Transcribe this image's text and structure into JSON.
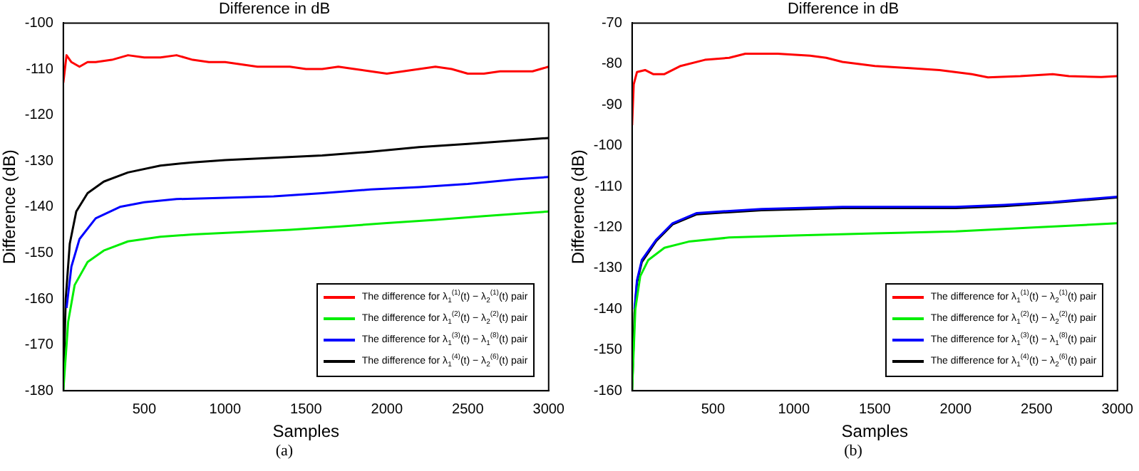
{
  "chart_data": [
    {
      "type": "line",
      "title": "Difference in dB",
      "xlabel": "Samples",
      "ylabel": "Difference (dB)",
      "xlim": [
        0,
        3000
      ],
      "xticks": [
        500,
        1000,
        1500,
        2000,
        2500,
        3000
      ],
      "ylim": [
        -180,
        -100
      ],
      "yticks": [
        -180,
        -170,
        -160,
        -150,
        -140,
        -130,
        -120,
        -110,
        -100
      ],
      "grid": false,
      "legend": "bottom right",
      "marker": "none",
      "line_style": "solid",
      "annotations": [
        "(a)"
      ],
      "series": [
        {
          "name": "The difference for λ$_{1}$$^{(1)}$(t) − λ$_{2}$$^{(1)}$(t) pair",
          "color": "#ff0000",
          "x": [
            0,
            20,
            50,
            100,
            150,
            200,
            300,
            400,
            500,
            600,
            700,
            800,
            900,
            1000,
            1100,
            1200,
            1300,
            1400,
            1500,
            1600,
            1700,
            1800,
            1900,
            2000,
            2100,
            2200,
            2300,
            2400,
            2500,
            2600,
            2700,
            2800,
            2900,
            3000
          ],
          "values": [
            -113,
            -107,
            -108.5,
            -109.5,
            -108.5,
            -108.5,
            -108,
            -107,
            -107.5,
            -107.5,
            -107,
            -108,
            -108.5,
            -108.5,
            -109,
            -109.5,
            -109.5,
            -109.5,
            -110,
            -110,
            -109.5,
            -110,
            -110.5,
            -111,
            -110.5,
            -110,
            -109.5,
            -110,
            -111,
            -111,
            -110.5,
            -110.5,
            -110.5,
            -109.5
          ]
        },
        {
          "name": "The difference for λ$_{1}$$^{(2)}$(t) − λ$_{2}$$^{(2)}$(t) pair",
          "color": "#00ee00",
          "x": [
            0,
            30,
            70,
            150,
            250,
            400,
            600,
            800,
            1100,
            1400,
            1700,
            2000,
            2300,
            2600,
            2800,
            3000
          ],
          "values": [
            -180,
            -165,
            -157,
            -152,
            -149.5,
            -147.5,
            -146.5,
            -146,
            -145.5,
            -145,
            -144.3,
            -143.5,
            -142.8,
            -142,
            -141.5,
            -141
          ]
        },
        {
          "name": "The difference for λ$_{1}$$^{(3)}$(t) − λ$_{1}$$^{(8)}$(t) pair",
          "color": "#0000ff",
          "x": [
            20,
            50,
            100,
            200,
            350,
            500,
            700,
            1000,
            1300,
            1600,
            1900,
            2200,
            2500,
            2800,
            3000
          ],
          "values": [
            -162,
            -153,
            -147,
            -142.5,
            -140,
            -139,
            -138.3,
            -138,
            -137.7,
            -137,
            -136.2,
            -135.7,
            -135,
            -134,
            -133.5
          ]
        },
        {
          "name": "The difference for λ$_{1}$$^{(4)}$(t) − λ$_{2}$$^{(6)}$(t) pair",
          "color": "#000000",
          "x": [
            0,
            15,
            40,
            80,
            150,
            250,
            400,
            600,
            800,
            1000,
            1300,
            1600,
            1900,
            2200,
            2500,
            2800,
            3000
          ],
          "values": [
            -180,
            -160,
            -148,
            -141,
            -137,
            -134.5,
            -132.5,
            -131,
            -130.3,
            -129.8,
            -129.3,
            -128.8,
            -128,
            -127,
            -126.3,
            -125.5,
            -125
          ]
        }
      ]
    },
    {
      "type": "line",
      "title": "Difference in dB",
      "xlabel": "Samples",
      "ylabel": "Difference (dB)",
      "xlim": [
        0,
        3000
      ],
      "xticks": [
        500,
        1000,
        1500,
        2000,
        2500,
        3000
      ],
      "ylim": [
        -160,
        -70
      ],
      "yticks": [
        -160,
        -150,
        -140,
        -130,
        -120,
        -110,
        -100,
        -90,
        -80,
        -70
      ],
      "grid": false,
      "legend": "bottom right",
      "marker": "none",
      "line_style": "solid",
      "annotations": [
        "(b)"
      ],
      "series": [
        {
          "name": "The difference for λ$_{1}$$^{(1)}$(t) − λ$_{2}$$^{(1)}$(t) pair",
          "color": "#ff0000",
          "x": [
            0,
            10,
            30,
            80,
            130,
            200,
            300,
            450,
            600,
            700,
            900,
            1100,
            1200,
            1300,
            1500,
            1700,
            1900,
            2100,
            2200,
            2400,
            2600,
            2700,
            2900,
            3000
          ],
          "values": [
            -95,
            -85,
            -82,
            -81.5,
            -82.5,
            -82.5,
            -80.5,
            -79,
            -78.5,
            -77.5,
            -77.5,
            -78,
            -78.5,
            -79.5,
            -80.5,
            -81,
            -81.5,
            -82.5,
            -83.3,
            -83,
            -82.5,
            -83,
            -83.2,
            -83
          ]
        },
        {
          "name": "The difference for λ$_{1}$$^{(2)}$(t) − λ$_{2}$$^{(2)}$(t) pair",
          "color": "#00ee00",
          "x": [
            0,
            20,
            50,
            100,
            200,
            350,
            600,
            1000,
            1500,
            2000,
            2500,
            3000
          ],
          "values": [
            -160,
            -140,
            -132,
            -128,
            -125,
            -123.5,
            -122.5,
            -122,
            -121.5,
            -121,
            -120,
            -119
          ]
        },
        {
          "name": "The difference for λ$_{1}$$^{(3)}$(t) − λ$_{1}$$^{(8)}$(t) pair",
          "color": "#0000ff",
          "x": [
            15,
            30,
            60,
            150,
            250,
            400,
            800,
            1300,
            2000,
            2300,
            2600,
            3000
          ],
          "values": [
            -140,
            -133,
            -128,
            -123,
            -119,
            -116.5,
            -115.5,
            -115,
            -115,
            -114.5,
            -113.8,
            -112.5
          ]
        },
        {
          "name": "The difference for λ$_{1}$$^{(4)}$(t) − λ$_{2}$$^{(6)}$(t) pair",
          "color": "#000000",
          "x": [
            0,
            15,
            30,
            60,
            150,
            250,
            400,
            800,
            1300,
            2000,
            2300,
            2600,
            3000
          ],
          "values": [
            -160,
            -141,
            -133.5,
            -128.5,
            -123.3,
            -119.3,
            -116.8,
            -115.8,
            -115.3,
            -115.3,
            -114.8,
            -114,
            -112.7
          ]
        }
      ]
    }
  ]
}
